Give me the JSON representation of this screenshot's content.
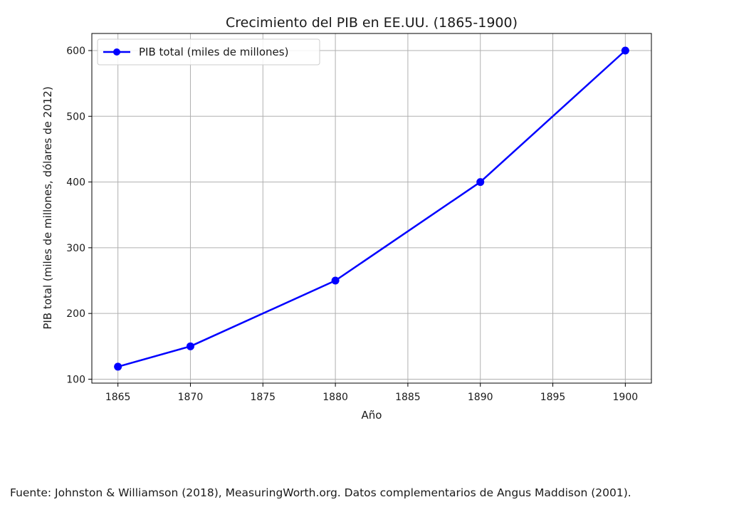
{
  "chart_data": {
    "type": "line",
    "title": "Crecimiento del PIB en EE.UU. (1865-1900)",
    "xlabel": "Año",
    "ylabel": "PIB total (miles de millones, dólares de 2012)",
    "xlim": [
      1863.2,
      1901.8
    ],
    "ylim": [
      94,
      626
    ],
    "x_ticks": [
      1865,
      1870,
      1875,
      1880,
      1885,
      1890,
      1895,
      1900
    ],
    "y_ticks": [
      100,
      200,
      300,
      400,
      500,
      600
    ],
    "grid": true,
    "legend_position": "top-left",
    "series": [
      {
        "name": "PIB total (miles de millones)",
        "color": "#0000ff",
        "marker": "circle",
        "x": [
          1865,
          1870,
          1880,
          1890,
          1900
        ],
        "y": [
          119,
          150,
          250,
          400,
          600
        ]
      }
    ]
  },
  "source_note": "Fuente: Johnston & Williamson (2018), MeasuringWorth.org. Datos complementarios de Angus Maddison (2001)."
}
